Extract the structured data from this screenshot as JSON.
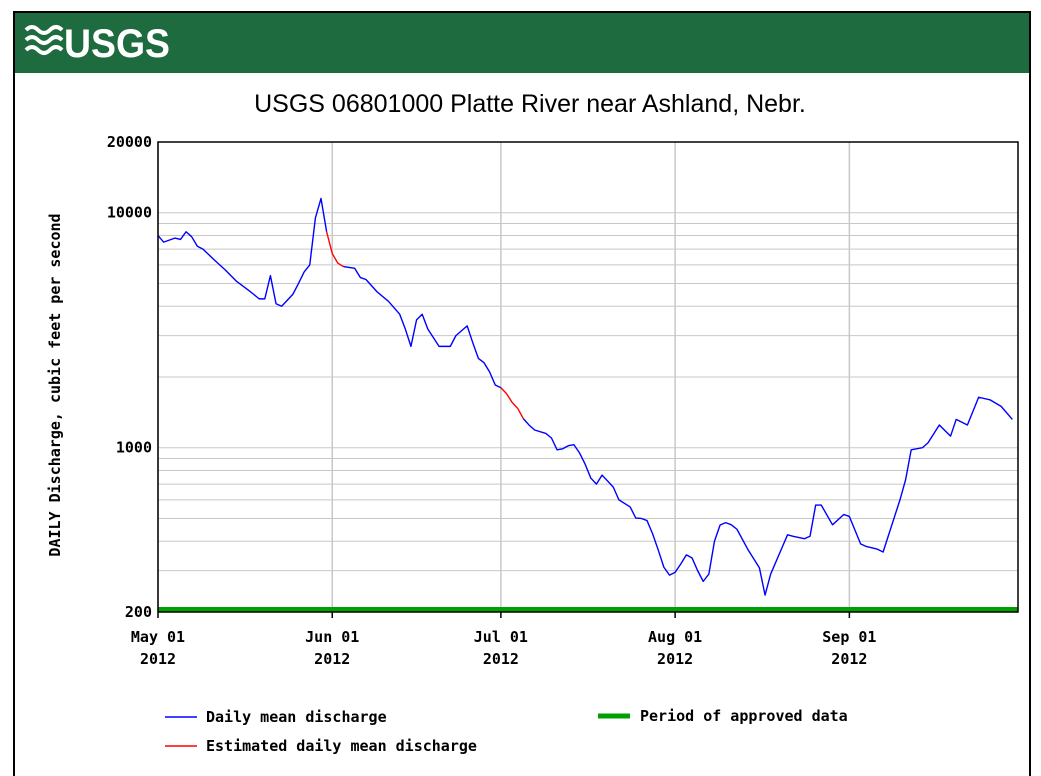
{
  "header": {
    "logo": "USGS"
  },
  "chart_data": {
    "type": "line",
    "title": "USGS 06801000 Platte River near Ashland, Nebr.",
    "y_label": "DAILY Discharge, cubic feet per second",
    "log_y": true,
    "grid": true,
    "ylim": [
      200,
      20000
    ],
    "yticks": [
      200,
      1000,
      10000,
      20000
    ],
    "minor_yticks": [
      300,
      400,
      500,
      600,
      700,
      800,
      900,
      2000,
      3000,
      4000,
      5000,
      6000,
      7000,
      8000,
      9000
    ],
    "xlim": [
      "2012-05-01",
      "2012-10-01"
    ],
    "xticks": [
      {
        "value": "2012-05-01",
        "label": [
          "May 01",
          "2012"
        ]
      },
      {
        "value": "2012-06-01",
        "label": [
          "Jun 01",
          "2012"
        ]
      },
      {
        "value": "2012-07-01",
        "label": [
          "Jul 01",
          "2012"
        ]
      },
      {
        "value": "2012-08-01",
        "label": [
          "Aug 01",
          "2012"
        ]
      },
      {
        "value": "2012-09-01",
        "label": [
          "Sep 01",
          "2012"
        ]
      }
    ],
    "x": [
      "2012-05-01",
      "2012-05-02",
      "2012-05-04",
      "2012-05-05",
      "2012-05-06",
      "2012-05-07",
      "2012-05-08",
      "2012-05-09",
      "2012-05-11",
      "2012-05-13",
      "2012-05-15",
      "2012-05-17",
      "2012-05-18",
      "2012-05-19",
      "2012-05-20",
      "2012-05-21",
      "2012-05-22",
      "2012-05-23",
      "2012-05-25",
      "2012-05-26",
      "2012-05-27",
      "2012-05-28",
      "2012-05-29",
      "2012-05-30",
      "2012-05-31",
      "2012-06-01",
      "2012-06-02",
      "2012-06-03",
      "2012-06-05",
      "2012-06-06",
      "2012-06-07",
      "2012-06-09",
      "2012-06-11",
      "2012-06-13",
      "2012-06-14",
      "2012-06-15",
      "2012-06-16",
      "2012-06-17",
      "2012-06-18",
      "2012-06-20",
      "2012-06-22",
      "2012-06-23",
      "2012-06-25",
      "2012-06-26",
      "2012-06-27",
      "2012-06-28",
      "2012-06-29",
      "2012-06-30",
      "2012-07-01",
      "2012-07-02",
      "2012-07-03",
      "2012-07-04",
      "2012-07-05",
      "2012-07-06",
      "2012-07-07",
      "2012-07-09",
      "2012-07-10",
      "2012-07-11",
      "2012-07-12",
      "2012-07-13",
      "2012-07-14",
      "2012-07-15",
      "2012-07-16",
      "2012-07-17",
      "2012-07-18",
      "2012-07-19",
      "2012-07-21",
      "2012-07-22",
      "2012-07-24",
      "2012-07-25",
      "2012-07-26",
      "2012-07-27",
      "2012-07-28",
      "2012-07-29",
      "2012-07-30",
      "2012-07-31",
      "2012-08-01",
      "2012-08-02",
      "2012-08-03",
      "2012-08-04",
      "2012-08-05",
      "2012-08-06",
      "2012-08-07",
      "2012-08-08",
      "2012-08-09",
      "2012-08-10",
      "2012-08-11",
      "2012-08-12",
      "2012-08-14",
      "2012-08-16",
      "2012-08-17",
      "2012-08-18",
      "2012-08-20",
      "2012-08-21",
      "2012-08-22",
      "2012-08-24",
      "2012-08-25",
      "2012-08-26",
      "2012-08-27",
      "2012-08-29",
      "2012-08-31",
      "2012-09-01",
      "2012-09-03",
      "2012-09-04",
      "2012-09-06",
      "2012-09-07",
      "2012-09-10",
      "2012-09-11",
      "2012-09-12",
      "2012-09-14",
      "2012-09-15",
      "2012-09-17",
      "2012-09-19",
      "2012-09-20",
      "2012-09-22",
      "2012-09-24",
      "2012-09-26",
      "2012-09-28",
      "2012-09-30"
    ],
    "series": [
      {
        "name": "Daily mean discharge",
        "color": "#0000ff",
        "values": [
          8000,
          7500,
          7800,
          7700,
          8300,
          7900,
          7200,
          7000,
          6300,
          5700,
          5100,
          4700,
          4500,
          4300,
          4300,
          5400,
          4100,
          4000,
          4500,
          5000,
          5600,
          6000,
          9500,
          11500,
          8300,
          null,
          null,
          5900,
          5800,
          5300,
          5200,
          4600,
          4200,
          3700,
          3200,
          2700,
          3500,
          3700,
          3200,
          2700,
          2700,
          3000,
          3300,
          2800,
          2400,
          2300,
          2100,
          1850,
          1800,
          null,
          null,
          null,
          1330,
          1250,
          1190,
          1150,
          1100,
          980,
          990,
          1020,
          1030,
          950,
          850,
          743,
          700,
          765,
          680,
          600,
          560,
          502,
          500,
          490,
          430,
          367,
          310,
          287,
          295,
          320,
          350,
          340,
          300,
          270,
          290,
          400,
          469,
          480,
          470,
          450,
          367,
          308,
          236,
          290,
          375,
          426,
          420,
          410,
          420,
          570,
          570,
          470,
          520,
          510,
          390,
          380,
          370,
          360,
          600,
          730,
          980,
          1000,
          1050,
          1250,
          1120,
          1320,
          1250,
          1640,
          1600,
          1500,
          1320
        ]
      },
      {
        "name": "Estimated daily mean discharge",
        "color": "#ff0000",
        "values": [
          null,
          null,
          null,
          null,
          null,
          null,
          null,
          null,
          null,
          null,
          null,
          null,
          null,
          null,
          null,
          null,
          null,
          null,
          null,
          null,
          null,
          null,
          null,
          null,
          8300,
          6700,
          6100,
          5900,
          null,
          null,
          null,
          null,
          null,
          null,
          null,
          null,
          null,
          null,
          null,
          null,
          null,
          null,
          null,
          null,
          null,
          null,
          null,
          null,
          1800,
          1700,
          1560,
          1470,
          1330,
          null,
          null,
          null,
          null,
          null,
          null,
          null,
          null,
          null,
          null,
          null,
          null,
          null,
          null,
          null,
          null,
          null,
          null,
          null,
          null,
          null,
          null,
          null,
          null,
          null,
          null,
          null,
          null,
          null,
          null,
          null,
          null,
          null,
          null,
          null,
          null,
          null,
          null,
          null,
          null,
          null,
          null,
          null,
          null,
          null,
          null,
          null,
          null,
          null,
          null,
          null,
          null,
          null,
          null,
          null,
          null,
          null,
          null,
          null,
          null,
          null,
          null,
          null,
          null,
          null,
          null
        ]
      }
    ],
    "approved_period": {
      "name": "Period of approved data",
      "color": "#00a000",
      "start": "2012-05-01",
      "end": "2012-10-01"
    }
  }
}
